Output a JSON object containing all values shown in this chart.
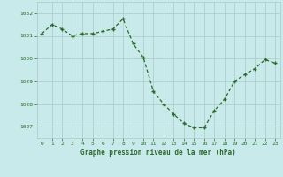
{
  "x": [
    0,
    1,
    2,
    3,
    4,
    5,
    6,
    7,
    8,
    9,
    10,
    11,
    12,
    13,
    14,
    15,
    16,
    17,
    18,
    19,
    20,
    21,
    22,
    23
  ],
  "y": [
    1031.1,
    1031.5,
    1031.3,
    1031.0,
    1031.1,
    1031.1,
    1031.2,
    1031.3,
    1031.75,
    1030.65,
    1030.05,
    1028.55,
    1028.0,
    1027.55,
    1027.15,
    1026.95,
    1026.95,
    1027.7,
    1028.2,
    1029.0,
    1029.3,
    1029.55,
    1029.95,
    1029.8
  ],
  "line_color": "#2d6a2d",
  "marker_color": "#2d6a2d",
  "bg_color": "#c8eaea",
  "grid_color": "#aacaca",
  "xlabel": "Graphe pression niveau de la mer (hPa)",
  "xlabel_color": "#2d6a2d",
  "tick_color": "#2d6a2d",
  "ylim": [
    1026.5,
    1032.5
  ],
  "yticks": [
    1027,
    1028,
    1029,
    1030,
    1031,
    1032
  ],
  "xticks": [
    0,
    1,
    2,
    3,
    4,
    5,
    6,
    7,
    8,
    9,
    10,
    11,
    12,
    13,
    14,
    15,
    16,
    17,
    18,
    19,
    20,
    21,
    22,
    23
  ]
}
